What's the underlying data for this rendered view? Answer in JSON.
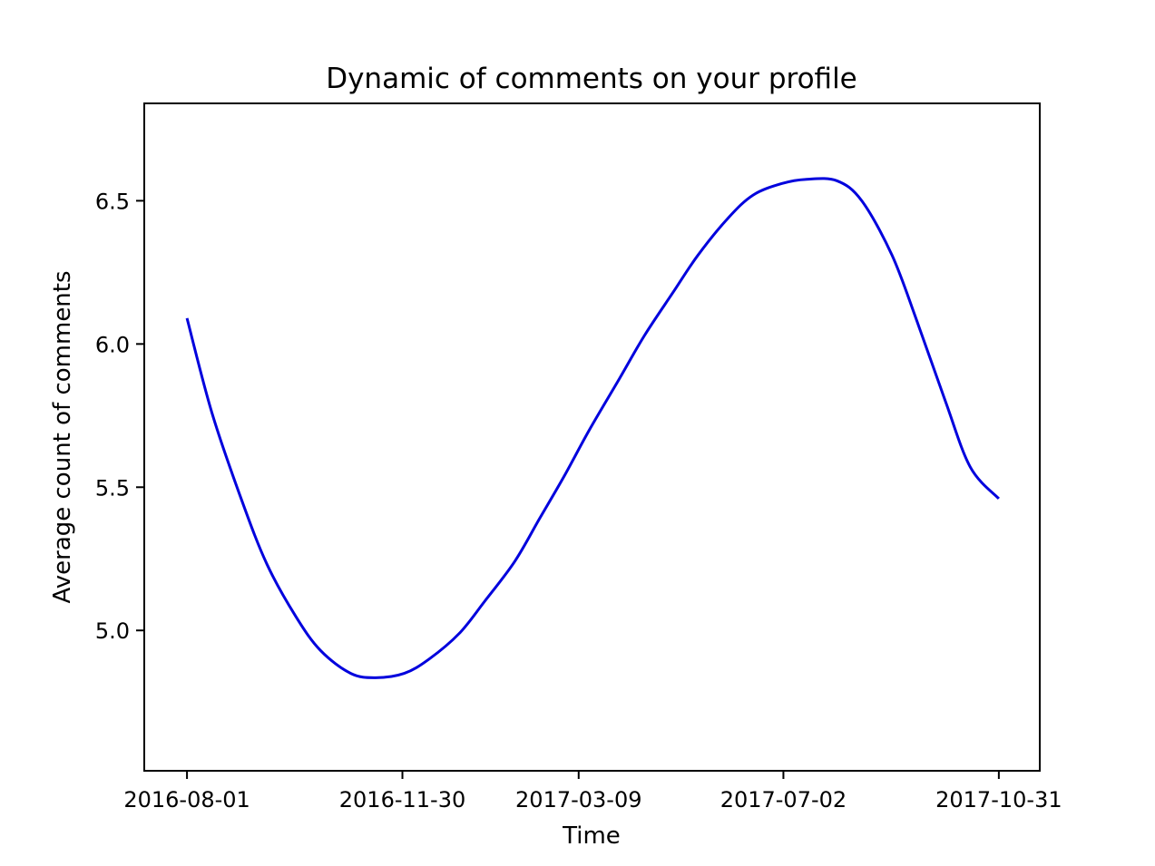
{
  "chart_data": {
    "type": "line",
    "title": "Dynamic of comments on your profile",
    "xlabel": "Time",
    "ylabel": "Average count of comments",
    "x_ticks": [
      "2016-08-01",
      "2016-11-30",
      "2017-03-09",
      "2017-07-02",
      "2017-10-31"
    ],
    "y_ticks": [
      "5.0",
      "5.5",
      "6.0",
      "6.5"
    ],
    "xlim": [
      "2016-07-08",
      "2017-11-23"
    ],
    "ylim": [
      4.51,
      6.84
    ],
    "grid": false,
    "legend": "none",
    "series": [
      {
        "color": "#0000dd",
        "x": [
          "2016-08-01",
          "2016-08-15",
          "2016-09-01",
          "2016-09-15",
          "2016-10-01",
          "2016-10-15",
          "2016-11-01",
          "2016-11-15",
          "2016-12-01",
          "2016-12-15",
          "2017-01-01",
          "2017-01-15",
          "2017-02-01",
          "2017-02-15",
          "2017-03-01",
          "2017-03-15",
          "2017-04-01",
          "2017-04-15",
          "2017-05-01",
          "2017-05-15",
          "2017-06-01",
          "2017-06-15",
          "2017-07-01",
          "2017-07-15",
          "2017-08-01",
          "2017-08-15",
          "2017-09-01",
          "2017-09-15",
          "2017-10-01",
          "2017-10-15",
          "2017-10-31"
        ],
        "y": [
          6.09,
          5.76,
          5.45,
          5.23,
          5.05,
          4.93,
          4.85,
          4.835,
          4.85,
          4.9,
          4.99,
          5.1,
          5.24,
          5.39,
          5.54,
          5.7,
          5.88,
          6.03,
          6.18,
          6.31,
          6.44,
          6.52,
          6.56,
          6.575,
          6.57,
          6.5,
          6.31,
          6.08,
          5.8,
          5.57,
          5.46
        ]
      }
    ]
  }
}
